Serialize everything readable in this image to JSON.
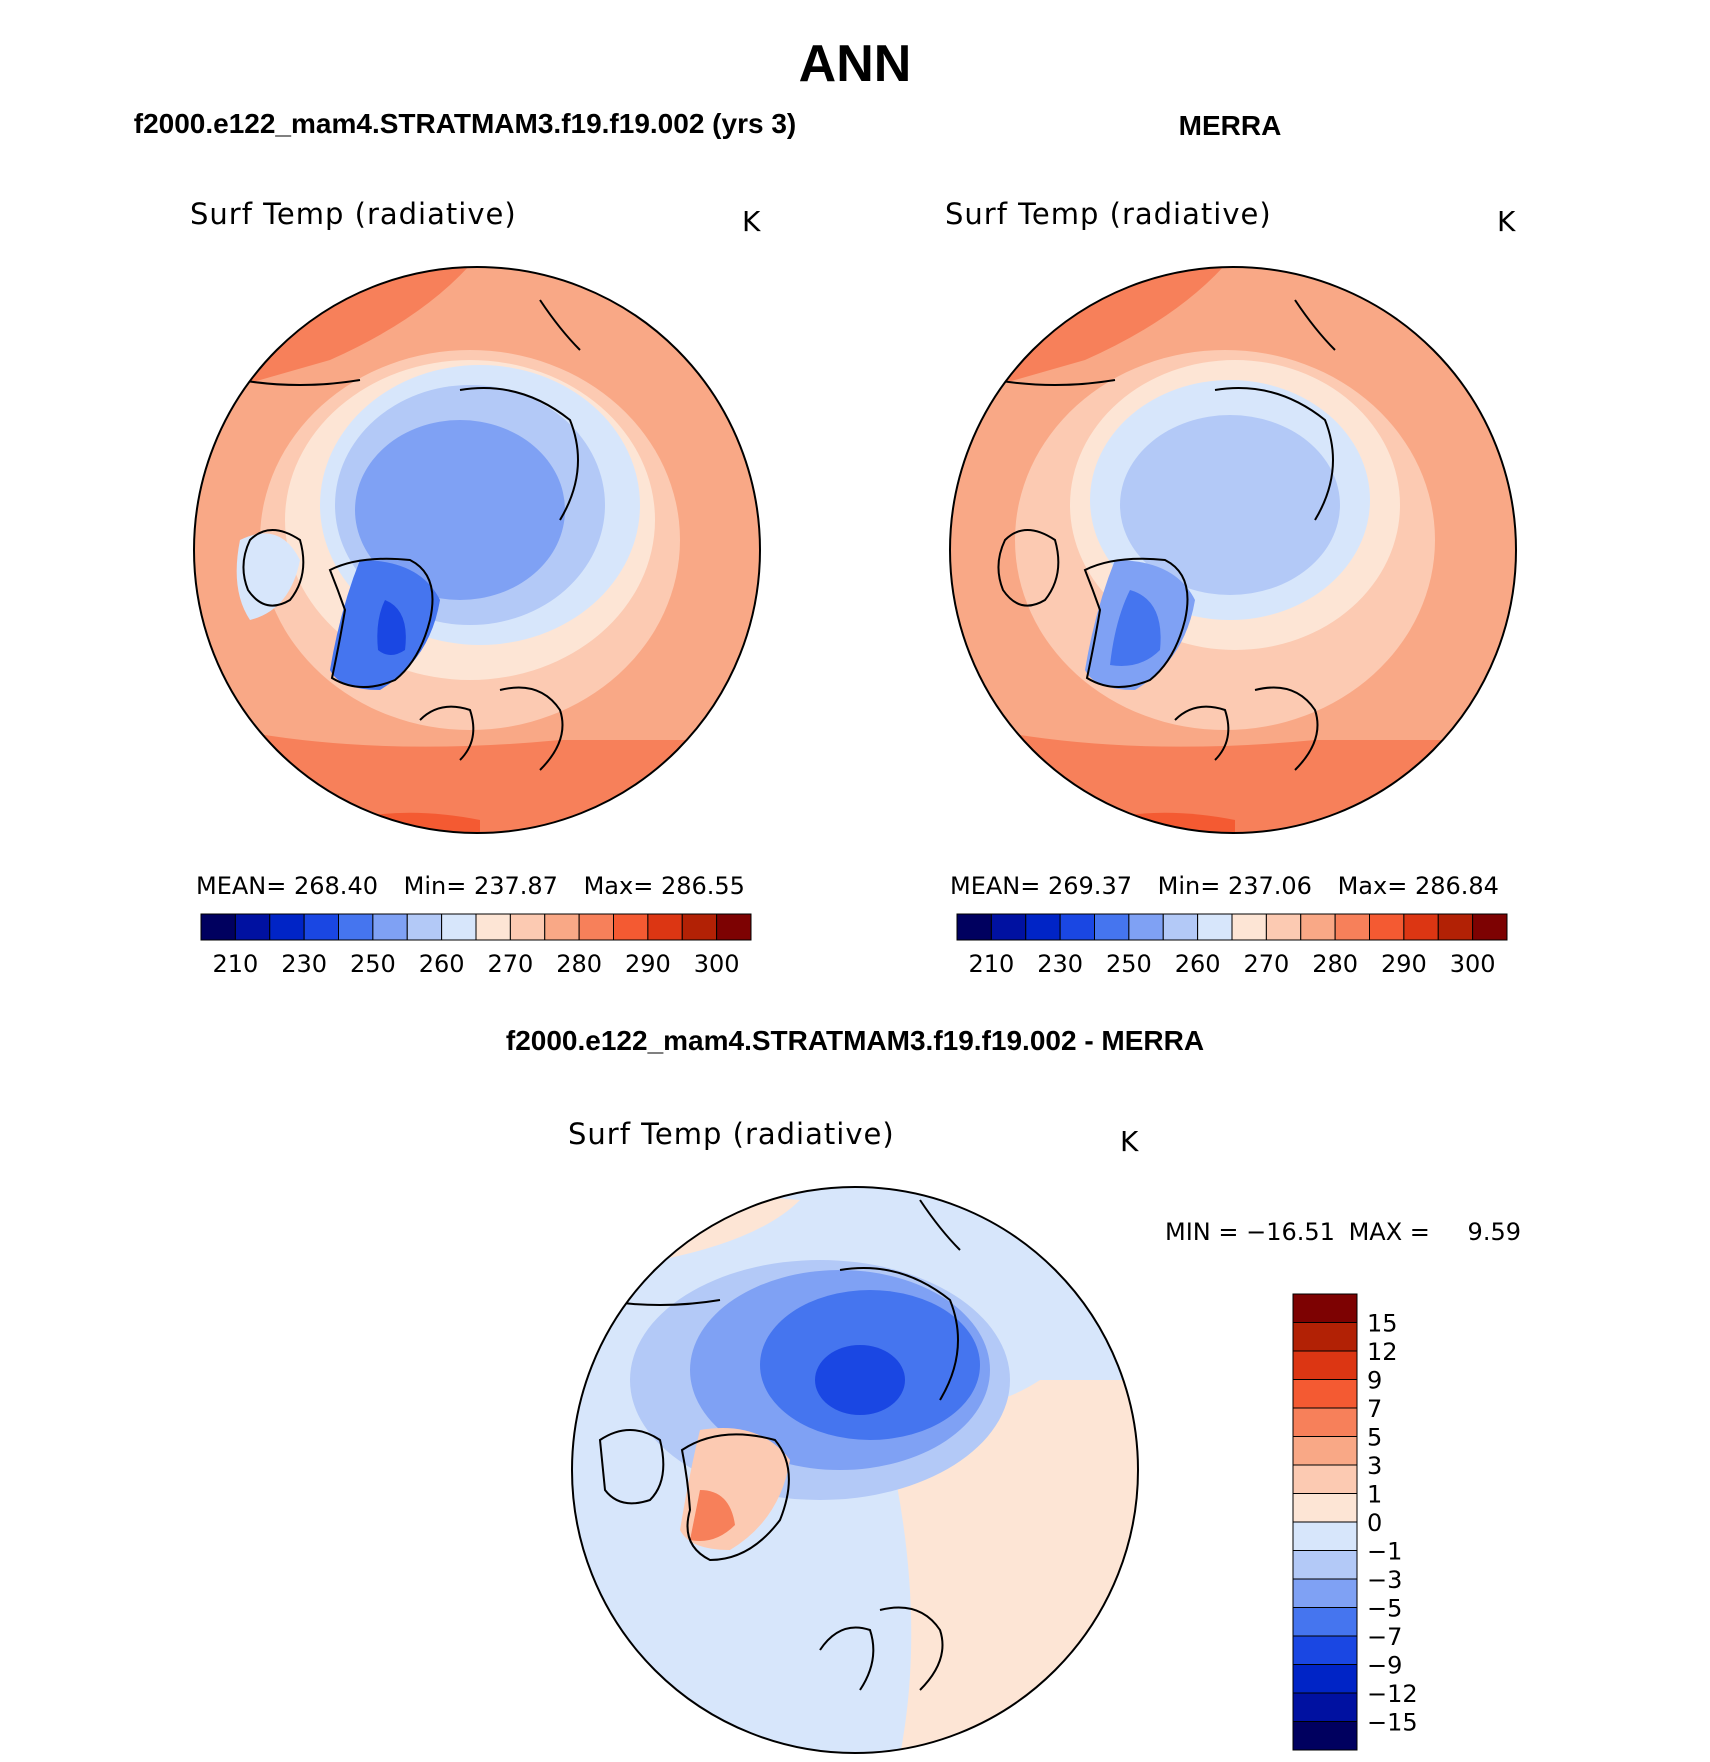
{
  "header": {
    "season": "ANN"
  },
  "panels": [
    {
      "case_title": "f2000.e122_mam4.STRATMAM3.f19.f19.002 (yrs 3)",
      "variable": "Surf Temp (radiative)",
      "units": "K",
      "stats": {
        "mean_label": "MEAN=",
        "mean": "268.40",
        "min_label": "Min=",
        "min": "237.87",
        "max_label": "Max=",
        "max": "286.55"
      }
    },
    {
      "case_title": "MERRA",
      "variable": "Surf Temp (radiative)",
      "units": "K",
      "stats": {
        "mean_label": "MEAN=",
        "mean": "269.37",
        "min_label": "Min=",
        "min": "237.06",
        "max_label": "Max=",
        "max": "286.84"
      }
    }
  ],
  "abs_colorbar": {
    "colors": [
      "#00005f",
      "#0011a1",
      "#0024c6",
      "#1a47e3",
      "#4575ef",
      "#7fa1f4",
      "#b3c9f7",
      "#d7e6fb",
      "#fde5d5",
      "#fccab2",
      "#f9a886",
      "#f7805a",
      "#f45a32",
      "#dc3613",
      "#b22105",
      "#7d0202"
    ],
    "tick_labels": [
      "210",
      "230",
      "250",
      "260",
      "270",
      "280",
      "290",
      "300"
    ]
  },
  "diff": {
    "title": "f2000.e122_mam4.STRATMAM3.f19.f19.002 - MERRA",
    "variable": "Surf Temp (radiative)",
    "units": "K",
    "stats": {
      "min_label": "MIN =",
      "min": "−16.51",
      "max_label": "MAX =",
      "max": "9.59"
    },
    "colorbar_top_to_bottom": [
      "#7d0202",
      "#b22105",
      "#dc3613",
      "#f45a32",
      "#f7805a",
      "#f9a886",
      "#fccab2",
      "#fde5d5",
      "#d7e6fb",
      "#b3c9f7",
      "#7fa1f4",
      "#4575ef",
      "#1a47e3",
      "#0024c6",
      "#0011a1",
      "#00005f"
    ],
    "tick_labels": [
      "15",
      "12",
      "9",
      "7",
      "5",
      "3",
      "1",
      "0",
      "−1",
      "−3",
      "−5",
      "−7",
      "−9",
      "−12",
      "−15"
    ]
  }
}
